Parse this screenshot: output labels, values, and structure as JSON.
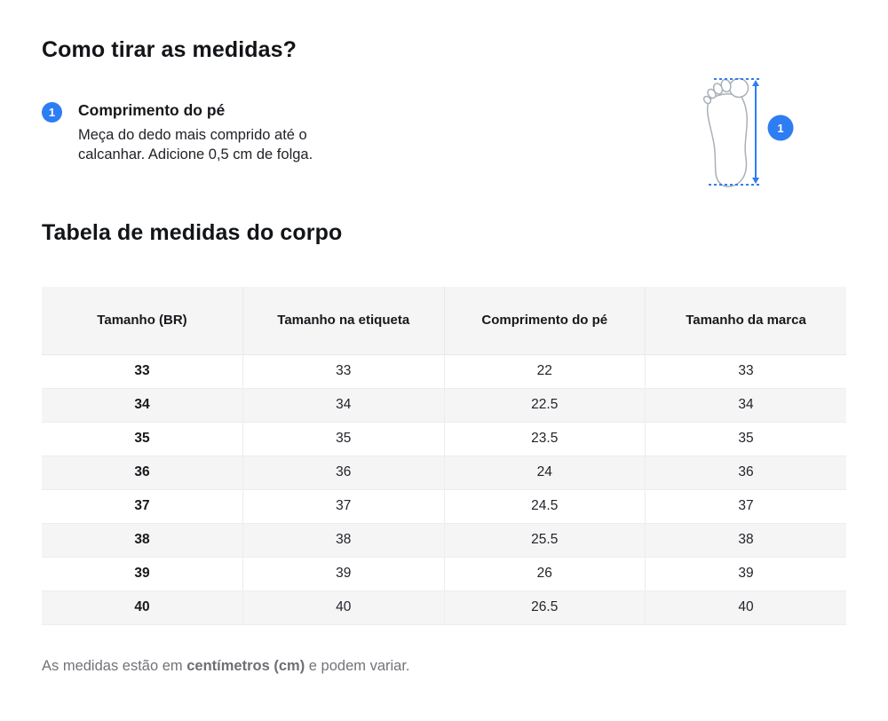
{
  "page": {
    "how_to_title": "Como tirar as medidas?",
    "table_title": "Tabela de medidas do corpo"
  },
  "step": {
    "number": "1",
    "title": "Comprimento do pé",
    "description": "Meça do dedo mais comprido até o calcanhar. Adicione 0,5 cm de folga."
  },
  "diagram": {
    "badge_number": "1",
    "meaning": "foot-length-measurement"
  },
  "table": {
    "headers": [
      "Tamanho (BR)",
      "Tamanho na etiqueta",
      "Comprimento do pé",
      "Tamanho da marca"
    ],
    "rows": [
      [
        "33",
        "33",
        "22",
        "33"
      ],
      [
        "34",
        "34",
        "22.5",
        "34"
      ],
      [
        "35",
        "35",
        "23.5",
        "35"
      ],
      [
        "36",
        "36",
        "24",
        "36"
      ],
      [
        "37",
        "37",
        "24.5",
        "37"
      ],
      [
        "38",
        "38",
        "25.5",
        "38"
      ],
      [
        "39",
        "39",
        "26",
        "39"
      ],
      [
        "40",
        "40",
        "26.5",
        "40"
      ]
    ]
  },
  "footnote": {
    "prefix": "As medidas estão em ",
    "bold": "centímetros (cm)",
    "suffix": " e podem variar."
  },
  "colors": {
    "accent_blue": "#2e7df2",
    "foot_outline": "#a9b0b8",
    "header_bg": "#f5f5f6",
    "row_alt_bg": "#f5f5f6",
    "border": "#e9e9eb",
    "footnote_grey": "#737379",
    "text_dark": "#121418"
  }
}
